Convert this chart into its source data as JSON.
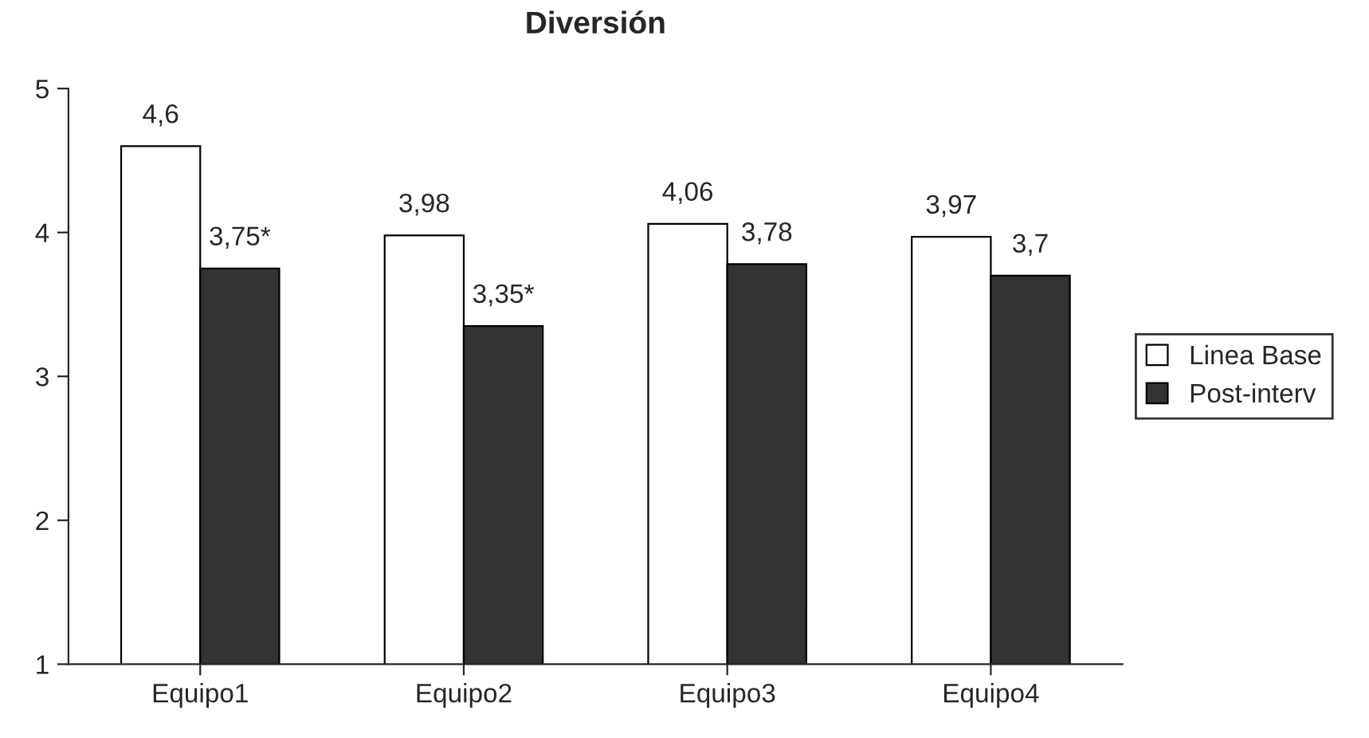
{
  "chart_data": {
    "type": "bar",
    "title": "Diversión",
    "categories": [
      "Equipo1",
      "Equipo2",
      "Equipo3",
      "Equipo4"
    ],
    "series": [
      {
        "name": "Linea Base",
        "color": "#ffffff",
        "values": [
          4.6,
          3.98,
          4.06,
          3.97
        ],
        "value_labels": [
          "4,6",
          "3,98",
          "4,06",
          "3,97"
        ]
      },
      {
        "name": "Post-interv",
        "color": "#333333",
        "values": [
          3.75,
          3.35,
          3.78,
          3.7
        ],
        "value_labels": [
          "3,75*",
          "3,35*",
          "3,78",
          "3,7"
        ]
      }
    ],
    "ylim": [
      1,
      5
    ],
    "yticks": [
      1,
      2,
      3,
      4,
      5
    ],
    "grid": false,
    "legend": "right"
  }
}
